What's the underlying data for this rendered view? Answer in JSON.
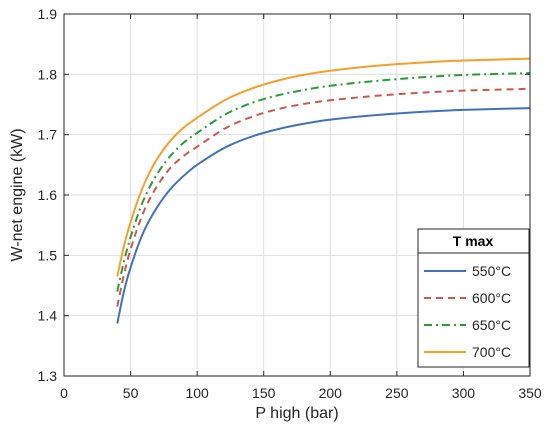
{
  "chart_data": {
    "type": "line",
    "xlabel": "P high (bar)",
    "ylabel": "W-net engine (kW)",
    "xlim": [
      0,
      350
    ],
    "ylim": [
      1.3,
      1.9
    ],
    "xticks": [
      0,
      50,
      100,
      150,
      200,
      250,
      300,
      350
    ],
    "yticks": [
      1.3,
      1.4,
      1.5,
      1.6,
      1.7,
      1.8,
      1.9
    ],
    "xtick_labels": [
      "0",
      "50",
      "100",
      "150",
      "200",
      "250",
      "300",
      "350"
    ],
    "ytick_labels": [
      "1.3",
      "1.4",
      "1.5",
      "1.6",
      "1.7",
      "1.8",
      "1.9"
    ],
    "grid": true,
    "legend": {
      "title": "T max",
      "placement": "bottom-right",
      "entries": [
        "550°C",
        "600°C",
        "650°C",
        "700°C"
      ]
    },
    "series": [
      {
        "name": "550°C",
        "color": "#4472b8",
        "style": "solid",
        "x": [
          40,
          45,
          50,
          60,
          70,
          80,
          90,
          100,
          125,
          150,
          175,
          200,
          250,
          300,
          350
        ],
        "y": [
          1.387,
          1.44,
          1.48,
          1.54,
          1.58,
          1.61,
          1.632,
          1.65,
          1.683,
          1.703,
          1.716,
          1.725,
          1.735,
          1.741,
          1.744
        ]
      },
      {
        "name": "600°C",
        "color": "#c85a50",
        "style": "dashed",
        "x": [
          40,
          45,
          50,
          60,
          70,
          80,
          90,
          100,
          125,
          150,
          175,
          200,
          250,
          300,
          350
        ],
        "y": [
          1.415,
          1.468,
          1.51,
          1.573,
          1.615,
          1.645,
          1.665,
          1.68,
          1.715,
          1.736,
          1.749,
          1.757,
          1.767,
          1.773,
          1.776
        ]
      },
      {
        "name": "650°C",
        "color": "#2a9a3a",
        "style": "dashdot",
        "x": [
          40,
          45,
          50,
          60,
          70,
          80,
          90,
          100,
          125,
          150,
          175,
          200,
          250,
          300,
          350
        ],
        "y": [
          1.44,
          1.49,
          1.53,
          1.593,
          1.635,
          1.665,
          1.687,
          1.703,
          1.738,
          1.759,
          1.772,
          1.781,
          1.792,
          1.799,
          1.802
        ]
      },
      {
        "name": "700°C",
        "color": "#f5a02a",
        "style": "solid",
        "x": [
          40,
          45,
          50,
          60,
          70,
          80,
          90,
          100,
          125,
          150,
          175,
          200,
          250,
          300,
          350
        ],
        "y": [
          1.465,
          1.515,
          1.555,
          1.617,
          1.66,
          1.69,
          1.712,
          1.728,
          1.762,
          1.783,
          1.797,
          1.806,
          1.817,
          1.823,
          1.826
        ]
      }
    ]
  }
}
